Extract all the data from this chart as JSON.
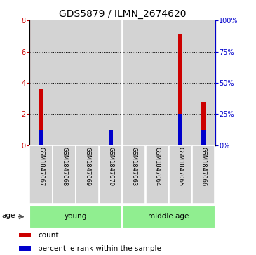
{
  "title": "GDS5879 / ILMN_2674620",
  "samples": [
    "GSM1847067",
    "GSM1847068",
    "GSM1847069",
    "GSM1847070",
    "GSM1847063",
    "GSM1847064",
    "GSM1847065",
    "GSM1847066"
  ],
  "count_values": [
    3.6,
    0.0,
    0.0,
    0.28,
    0.0,
    0.0,
    7.1,
    2.8
  ],
  "percentile_values": [
    12.5,
    0.0,
    0.0,
    12.5,
    0.0,
    0.0,
    25.0,
    12.5
  ],
  "count_color": "#cc0000",
  "percentile_color": "#0000cc",
  "ylim_left": [
    0,
    8
  ],
  "ylim_right": [
    0,
    100
  ],
  "yticks_left": [
    0,
    2,
    4,
    6,
    8
  ],
  "ytick_labels_left": [
    "0",
    "2",
    "4",
    "6",
    "8"
  ],
  "yticks_right": [
    0,
    25,
    50,
    75,
    100
  ],
  "ytick_labels_right": [
    "0%",
    "25%",
    "50%",
    "75%",
    "100%"
  ],
  "groups": [
    {
      "label": "young",
      "start": 0,
      "end": 4
    },
    {
      "label": "middle age",
      "start": 4,
      "end": 8
    }
  ],
  "group_color": "#90ee90",
  "bar_bg_color": "#d3d3d3",
  "age_label": "age",
  "legend": [
    {
      "color": "#cc0000",
      "label": "count"
    },
    {
      "color": "#0000cc",
      "label": "percentile rank within the sample"
    }
  ],
  "title_fontsize": 10,
  "tick_fontsize": 7,
  "label_fontsize": 7.5,
  "sample_fontsize": 6,
  "bar_width": 0.35,
  "bg_bar_width": 0.98
}
